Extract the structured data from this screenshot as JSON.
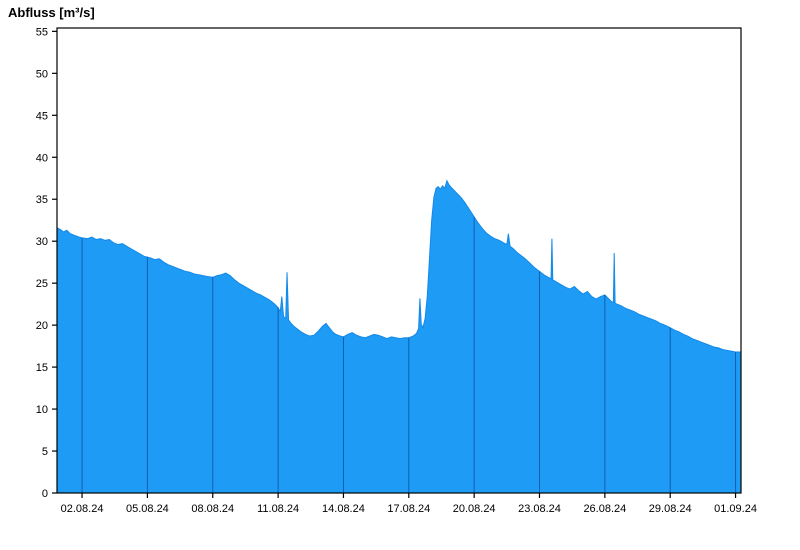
{
  "title": "Abfluss [m³/s]",
  "chart_data": {
    "type": "area",
    "title": "Abfluss [m³/s]",
    "xlabel": "",
    "ylabel": "Abfluss [m³/s]",
    "xlim": [
      0,
      31.4
    ],
    "ylim": [
      0,
      55.4
    ],
    "yticks": [
      0,
      5,
      10,
      15,
      20,
      25,
      30,
      35,
      40,
      45,
      50,
      55
    ],
    "x_ticks": [
      {
        "label": "02.08.24",
        "pos": 1.15
      },
      {
        "label": "05.08.24",
        "pos": 4.15
      },
      {
        "label": "08.08.24",
        "pos": 7.15
      },
      {
        "label": "11.08.24",
        "pos": 10.15
      },
      {
        "label": "14.08.24",
        "pos": 13.15
      },
      {
        "label": "17.08.24",
        "pos": 16.15
      },
      {
        "label": "20.08.24",
        "pos": 19.15
      },
      {
        "label": "23.08.24",
        "pos": 22.15
      },
      {
        "label": "26.08.24",
        "pos": 25.15
      },
      {
        "label": "29.08.24",
        "pos": 28.15
      },
      {
        "label": "01.09.24",
        "pos": 31.15
      }
    ],
    "grid": "vertical-only-inside-fill",
    "legend": "none",
    "colors": {
      "fill": "#1E9BF5",
      "edge": "#1489E8",
      "gridline": "#0E5FAE",
      "axis": "#000000",
      "background": "#FFFFFF"
    },
    "series": [
      {
        "name": "Abfluss",
        "unit": "m³/s",
        "points": [
          [
            0,
            31.6
          ],
          [
            0.15,
            31.4
          ],
          [
            0.3,
            31.1
          ],
          [
            0.45,
            31.3
          ],
          [
            0.6,
            30.9
          ],
          [
            0.8,
            30.7
          ],
          [
            1,
            30.5
          ],
          [
            1.15,
            30.4
          ],
          [
            1.4,
            30.3
          ],
          [
            1.6,
            30.5
          ],
          [
            1.8,
            30.2
          ],
          [
            2,
            30.3
          ],
          [
            2.2,
            30.1
          ],
          [
            2.4,
            30.2
          ],
          [
            2.6,
            29.8
          ],
          [
            2.8,
            29.6
          ],
          [
            3,
            29.7
          ],
          [
            3.2,
            29.4
          ],
          [
            3.4,
            29.1
          ],
          [
            3.6,
            28.8
          ],
          [
            3.8,
            28.5
          ],
          [
            4,
            28.2
          ],
          [
            4.15,
            28.1
          ],
          [
            4.3,
            28
          ],
          [
            4.5,
            27.8
          ],
          [
            4.7,
            27.9
          ],
          [
            4.9,
            27.5
          ],
          [
            5.1,
            27.2
          ],
          [
            5.3,
            27
          ],
          [
            5.5,
            26.8
          ],
          [
            5.7,
            26.6
          ],
          [
            5.9,
            26.4
          ],
          [
            6.1,
            26.3
          ],
          [
            6.3,
            26.1
          ],
          [
            6.5,
            26
          ],
          [
            6.7,
            25.9
          ],
          [
            6.9,
            25.8
          ],
          [
            7.15,
            25.7
          ],
          [
            7.35,
            25.9
          ],
          [
            7.55,
            26
          ],
          [
            7.75,
            26.2
          ],
          [
            7.95,
            25.9
          ],
          [
            8.15,
            25.4
          ],
          [
            8.35,
            25
          ],
          [
            8.55,
            24.7
          ],
          [
            8.75,
            24.4
          ],
          [
            8.95,
            24.1
          ],
          [
            9.15,
            23.8
          ],
          [
            9.35,
            23.6
          ],
          [
            9.55,
            23.3
          ],
          [
            9.75,
            23
          ],
          [
            9.95,
            22.6
          ],
          [
            10.15,
            22.1
          ],
          [
            10.25,
            21.6
          ],
          [
            10.32,
            23.4
          ],
          [
            10.4,
            21
          ],
          [
            10.5,
            20.8
          ],
          [
            10.56,
            26.3
          ],
          [
            10.63,
            20.6
          ],
          [
            10.75,
            20.2
          ],
          [
            10.9,
            19.8
          ],
          [
            11.05,
            19.5
          ],
          [
            11.2,
            19.2
          ],
          [
            11.4,
            18.9
          ],
          [
            11.6,
            18.7
          ],
          [
            11.8,
            18.8
          ],
          [
            12,
            19.3
          ],
          [
            12.2,
            19.9
          ],
          [
            12.35,
            20.2
          ],
          [
            12.5,
            19.7
          ],
          [
            12.65,
            19.2
          ],
          [
            12.8,
            18.9
          ],
          [
            13,
            18.7
          ],
          [
            13.15,
            18.6
          ],
          [
            13.35,
            18.9
          ],
          [
            13.55,
            19.1
          ],
          [
            13.75,
            18.8
          ],
          [
            13.95,
            18.6
          ],
          [
            14.15,
            18.5
          ],
          [
            14.35,
            18.7
          ],
          [
            14.55,
            18.9
          ],
          [
            14.75,
            18.8
          ],
          [
            14.95,
            18.6
          ],
          [
            15.15,
            18.4
          ],
          [
            15.35,
            18.6
          ],
          [
            15.55,
            18.5
          ],
          [
            15.75,
            18.4
          ],
          [
            15.95,
            18.5
          ],
          [
            16.15,
            18.5
          ],
          [
            16.35,
            18.7
          ],
          [
            16.5,
            19
          ],
          [
            16.6,
            19.6
          ],
          [
            16.66,
            23.2
          ],
          [
            16.72,
            20.1
          ],
          [
            16.8,
            19.7
          ],
          [
            16.9,
            20.8
          ],
          [
            17,
            23.5
          ],
          [
            17.1,
            28
          ],
          [
            17.2,
            32.5
          ],
          [
            17.3,
            35.2
          ],
          [
            17.4,
            36.3
          ],
          [
            17.5,
            36.5
          ],
          [
            17.6,
            36.2
          ],
          [
            17.7,
            36.6
          ],
          [
            17.8,
            36.3
          ],
          [
            17.9,
            37.2
          ],
          [
            18,
            36.7
          ],
          [
            18.1,
            36.4
          ],
          [
            18.25,
            36
          ],
          [
            18.4,
            35.6
          ],
          [
            18.55,
            35.2
          ],
          [
            18.7,
            34.7
          ],
          [
            18.85,
            34.1
          ],
          [
            19,
            33.5
          ],
          [
            19.15,
            32.9
          ],
          [
            19.3,
            32.3
          ],
          [
            19.5,
            31.6
          ],
          [
            19.7,
            31
          ],
          [
            19.9,
            30.6
          ],
          [
            20.1,
            30.3
          ],
          [
            20.3,
            30.1
          ],
          [
            20.5,
            29.8
          ],
          [
            20.65,
            29.6
          ],
          [
            20.72,
            30.9
          ],
          [
            20.8,
            29.4
          ],
          [
            20.95,
            29.1
          ],
          [
            21.1,
            28.7
          ],
          [
            21.3,
            28.3
          ],
          [
            21.5,
            27.9
          ],
          [
            21.7,
            27.4
          ],
          [
            21.9,
            26.9
          ],
          [
            22.15,
            26.4
          ],
          [
            22.35,
            26
          ],
          [
            22.55,
            25.7
          ],
          [
            22.68,
            25.5
          ],
          [
            22.72,
            30.3
          ],
          [
            22.76,
            25.4
          ],
          [
            22.95,
            25.1
          ],
          [
            23.15,
            24.8
          ],
          [
            23.35,
            24.5
          ],
          [
            23.55,
            24.3
          ],
          [
            23.75,
            24.6
          ],
          [
            23.95,
            24.1
          ],
          [
            24.15,
            23.7
          ],
          [
            24.35,
            24
          ],
          [
            24.55,
            23.4
          ],
          [
            24.75,
            23.1
          ],
          [
            24.95,
            23.4
          ],
          [
            25.15,
            23.6
          ],
          [
            25.3,
            23.2
          ],
          [
            25.45,
            22.8
          ],
          [
            25.54,
            22.7
          ],
          [
            25.58,
            28.6
          ],
          [
            25.62,
            22.6
          ],
          [
            25.9,
            22.3
          ],
          [
            26.1,
            22
          ],
          [
            26.3,
            21.8
          ],
          [
            26.5,
            21.6
          ],
          [
            26.7,
            21.3
          ],
          [
            26.9,
            21.1
          ],
          [
            27.1,
            20.9
          ],
          [
            27.3,
            20.7
          ],
          [
            27.5,
            20.5
          ],
          [
            27.7,
            20.2
          ],
          [
            27.9,
            20
          ],
          [
            28.15,
            19.7
          ],
          [
            28.35,
            19.4
          ],
          [
            28.55,
            19.2
          ],
          [
            28.75,
            18.9
          ],
          [
            28.95,
            18.7
          ],
          [
            29.15,
            18.4
          ],
          [
            29.35,
            18.2
          ],
          [
            29.55,
            18
          ],
          [
            29.75,
            17.8
          ],
          [
            29.95,
            17.6
          ],
          [
            30.15,
            17.4
          ],
          [
            30.35,
            17.3
          ],
          [
            30.55,
            17.1
          ],
          [
            30.75,
            17
          ],
          [
            30.95,
            16.9
          ],
          [
            31.15,
            16.8
          ],
          [
            31.4,
            16.8
          ]
        ]
      }
    ]
  }
}
